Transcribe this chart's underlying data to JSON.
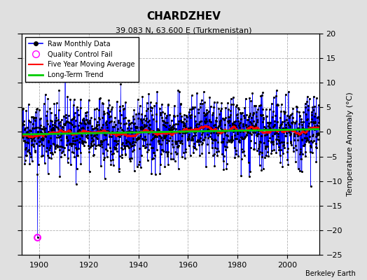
{
  "title": "CHARDZHEV",
  "subtitle": "39.083 N, 63.600 E (Turkmenistan)",
  "ylabel": "Temperature Anomaly (°C)",
  "credit": "Berkeley Earth",
  "xlim": [
    1893,
    2013
  ],
  "ylim": [
    -25,
    20
  ],
  "yticks": [
    -25,
    -20,
    -15,
    -10,
    -5,
    0,
    5,
    10,
    15,
    20
  ],
  "xticks": [
    1900,
    1920,
    1940,
    1960,
    1980,
    2000
  ],
  "bg_color": "#e0e0e0",
  "plot_bg_color": "#ffffff",
  "line_color": "#0000ff",
  "marker_color": "#000000",
  "moving_avg_color": "#ff0000",
  "trend_color": "#00cc00",
  "qc_fail_color": "#ff00ff",
  "start_year": 1893,
  "end_year": 2012,
  "seed": 42
}
